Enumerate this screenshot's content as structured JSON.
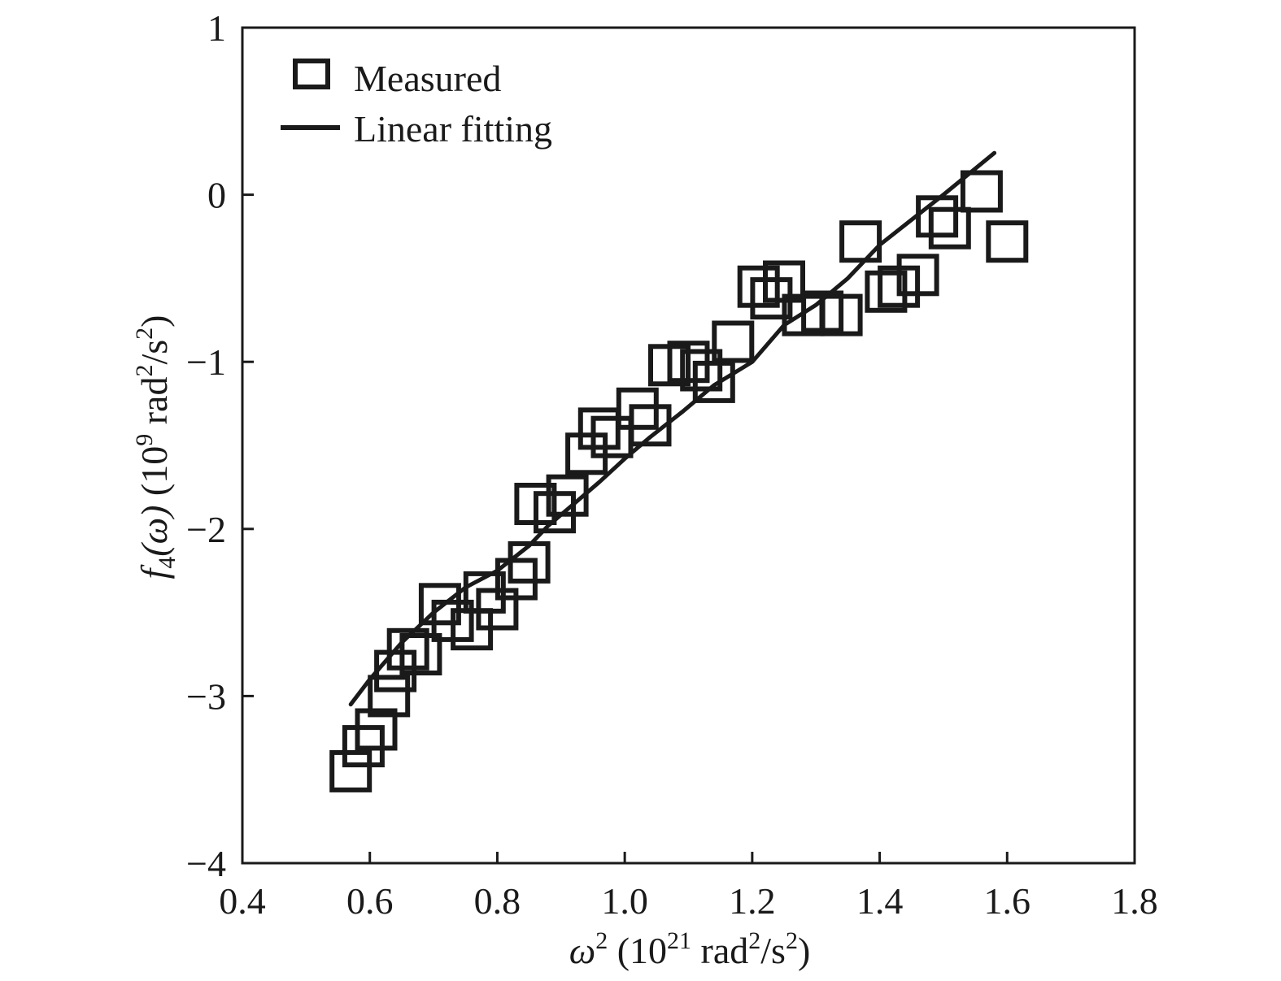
{
  "chart_data": {
    "type": "scatter",
    "xlabel": {
      "symbol": "ω",
      "sup": "2",
      "unit_open": " (10",
      "unit_exp": "21",
      "unit_mid": " rad",
      "unit_sup1": "2",
      "unit_slash": "/s",
      "unit_sup2": "2",
      "unit_close": ")"
    },
    "ylabel": {
      "func": "f",
      "func_sub": "4",
      "arg": "(ω)",
      "unit_open": " (10",
      "unit_exp": "9",
      "unit_mid": " rad",
      "unit_sup1": "2",
      "unit_slash": "/s",
      "unit_sup2": "2",
      "unit_close": ")"
    },
    "xlim": [
      0.4,
      1.8
    ],
    "ylim": [
      -4,
      1
    ],
    "x_ticks": [
      "0.4",
      "0.6",
      "0.8",
      "1.0",
      "1.2",
      "1.4",
      "1.6",
      "1.8"
    ],
    "y_ticks": [
      "1",
      "0",
      "−1",
      "−2",
      "−3",
      "−4"
    ],
    "legend_position": "top-left",
    "grid": false,
    "series": [
      {
        "name": "Measured",
        "kind": "scatter",
        "marker": "open-square",
        "color": "#1a1a1a",
        "points": [
          [
            0.57,
            -3.45
          ],
          [
            0.59,
            -3.3
          ],
          [
            0.61,
            -3.2
          ],
          [
            0.63,
            -3.0
          ],
          [
            0.64,
            -2.85
          ],
          [
            0.66,
            -2.72
          ],
          [
            0.68,
            -2.75
          ],
          [
            0.71,
            -2.45
          ],
          [
            0.73,
            -2.55
          ],
          [
            0.76,
            -2.6
          ],
          [
            0.78,
            -2.38
          ],
          [
            0.8,
            -2.48
          ],
          [
            0.83,
            -2.3
          ],
          [
            0.85,
            -2.2
          ],
          [
            0.86,
            -1.85
          ],
          [
            0.89,
            -1.9
          ],
          [
            0.91,
            -1.8
          ],
          [
            0.94,
            -1.55
          ],
          [
            0.96,
            -1.4
          ],
          [
            0.98,
            -1.45
          ],
          [
            1.02,
            -1.28
          ],
          [
            1.04,
            -1.38
          ],
          [
            1.07,
            -1.02
          ],
          [
            1.1,
            -1.0
          ],
          [
            1.12,
            -1.05
          ],
          [
            1.14,
            -1.12
          ],
          [
            1.17,
            -0.88
          ],
          [
            1.21,
            -0.55
          ],
          [
            1.23,
            -0.62
          ],
          [
            1.25,
            -0.52
          ],
          [
            1.28,
            -0.72
          ],
          [
            1.31,
            -0.7
          ],
          [
            1.34,
            -0.72
          ],
          [
            1.37,
            -0.28
          ],
          [
            1.41,
            -0.58
          ],
          [
            1.43,
            -0.55
          ],
          [
            1.46,
            -0.48
          ],
          [
            1.49,
            -0.13
          ],
          [
            1.51,
            -0.2
          ],
          [
            1.56,
            0.02
          ],
          [
            1.6,
            -0.28
          ]
        ]
      },
      {
        "name": "Linear fitting",
        "kind": "line",
        "color": "#1a1a1a",
        "points": [
          [
            0.57,
            -3.05
          ],
          [
            0.6,
            -2.9
          ],
          [
            0.65,
            -2.68
          ],
          [
            0.7,
            -2.5
          ],
          [
            0.75,
            -2.35
          ],
          [
            0.8,
            -2.25
          ],
          [
            0.85,
            -2.1
          ],
          [
            0.88,
            -1.98
          ],
          [
            0.92,
            -1.85
          ],
          [
            0.96,
            -1.72
          ],
          [
            1.0,
            -1.58
          ],
          [
            1.04,
            -1.45
          ],
          [
            1.09,
            -1.3
          ],
          [
            1.14,
            -1.14
          ],
          [
            1.2,
            -1.0
          ],
          [
            1.25,
            -0.78
          ],
          [
            1.3,
            -0.66
          ],
          [
            1.35,
            -0.5
          ],
          [
            1.4,
            -0.3
          ],
          [
            1.45,
            -0.15
          ],
          [
            1.5,
            0.0
          ],
          [
            1.58,
            0.25
          ]
        ]
      }
    ]
  }
}
